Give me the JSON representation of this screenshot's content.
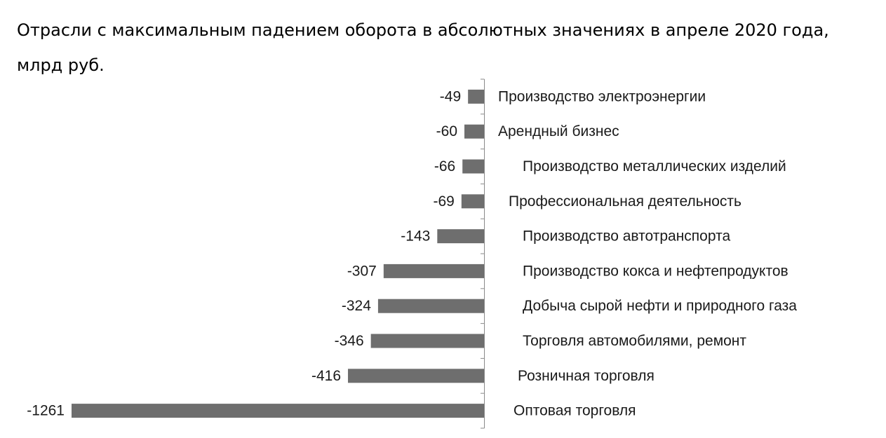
{
  "chart_data": {
    "type": "bar",
    "orientation": "horizontal",
    "title": "Отрасли с максимальным падением оборота в абсолютных значениях в апреле 2020 года, млрд руб.",
    "categories": [
      "Производство электроэнергии",
      "Арендный бизнес",
      "Производство металлических изделий",
      "Профессиональная деятельность",
      "Производство автотранспорта",
      "Производство кокса и нефтепродуктов",
      "Добыча сырой нефти и природного газа",
      "Торговля автомобилями, ремонт",
      "Розничная торговля",
      "Оптовая торговля"
    ],
    "values": [
      -49,
      -60,
      -66,
      -69,
      -143,
      -307,
      -324,
      -346,
      -416,
      -1261
    ],
    "data_labels": [
      "-49",
      "-60",
      "-66",
      "-69",
      "-143",
      "-307",
      "-324",
      "-346",
      "-416",
      "-1261"
    ],
    "xlim": [
      -1261,
      0
    ],
    "grid": false,
    "legend": "none",
    "bar_color": "#6e6e6e",
    "axis_color": "#8a8a8a"
  }
}
